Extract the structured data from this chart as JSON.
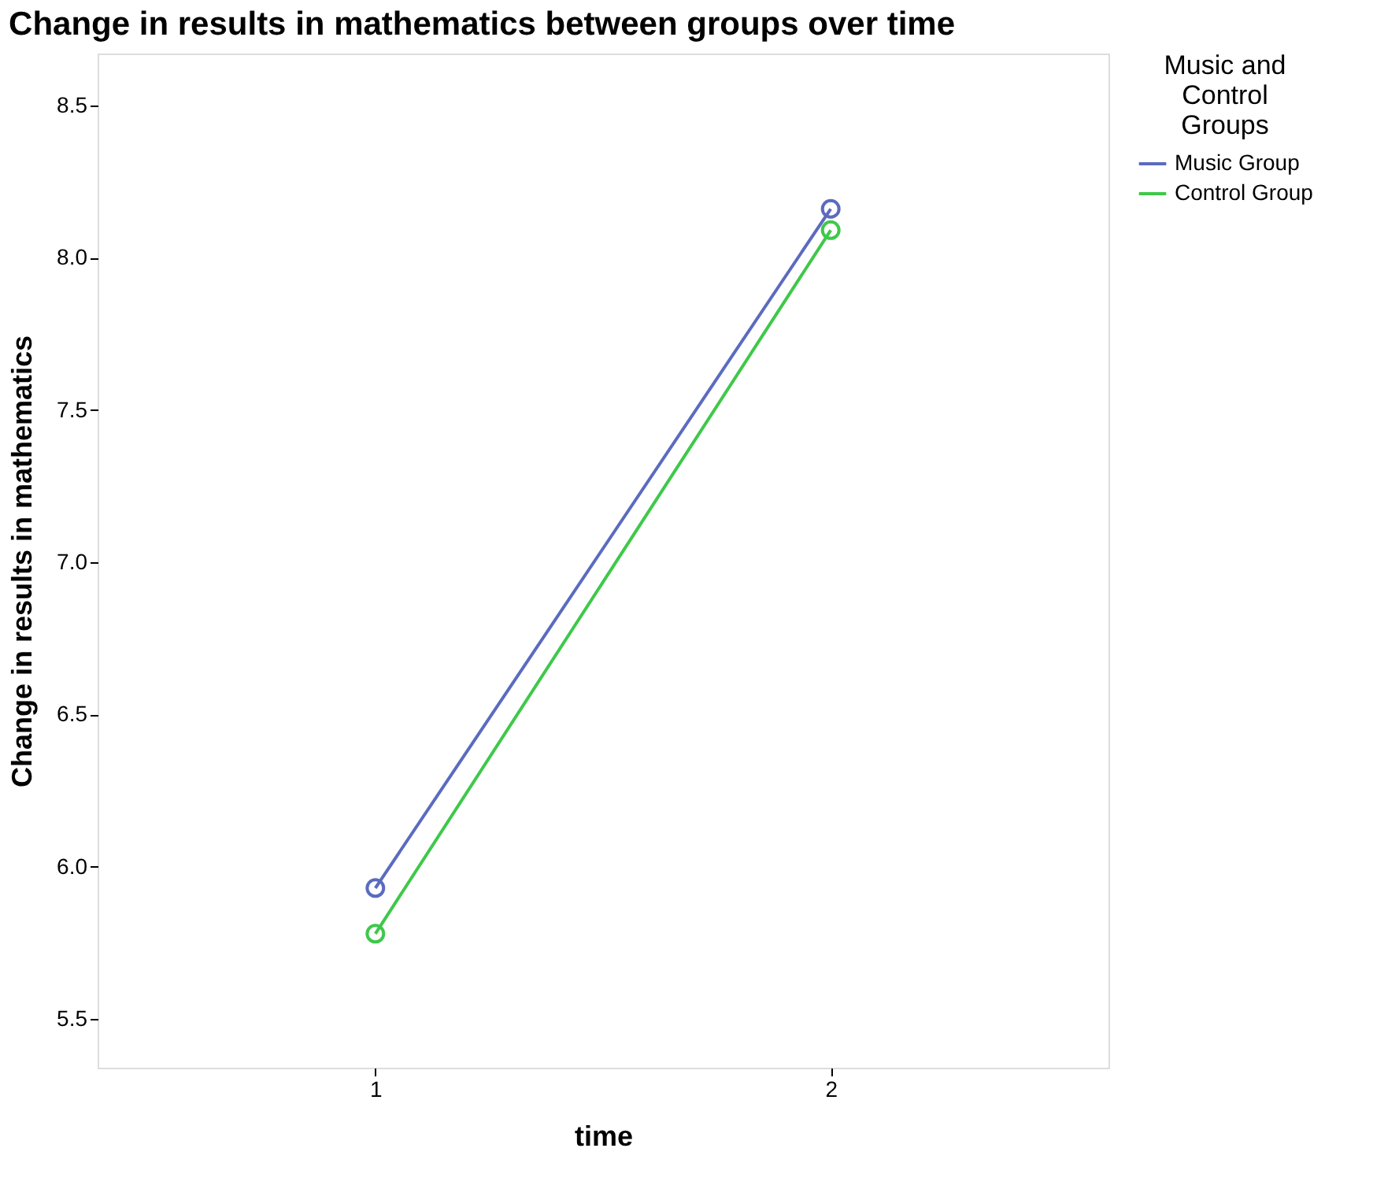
{
  "chart_data": {
    "type": "line",
    "title": "Change in results in mathematics between groups over time",
    "xlabel": "time",
    "ylabel": "Change in results in mathematics",
    "legend_title": "Music and Control Groups",
    "categories": [
      "1",
      "2"
    ],
    "series": [
      {
        "name": "Music Group",
        "color": "#5b6bbf",
        "values": [
          5.93,
          8.16
        ]
      },
      {
        "name": "Control Group",
        "color": "#3fc84a",
        "values": [
          5.78,
          8.09
        ]
      }
    ],
    "ylim": [
      5.34,
      8.67
    ],
    "yticks": [
      {
        "value": 5.5,
        "label": "5.5"
      },
      {
        "value": 6,
        "label": "6.0"
      },
      {
        "value": 6.5,
        "label": "6.5"
      },
      {
        "value": 7,
        "label": "7.0"
      },
      {
        "value": 7.5,
        "label": "7.5"
      },
      {
        "value": 8,
        "label": "8.0"
      },
      {
        "value": 8.5,
        "label": "8.5"
      }
    ],
    "marker": "circle",
    "line_style": "solid",
    "grid": false,
    "legend": "top right"
  }
}
